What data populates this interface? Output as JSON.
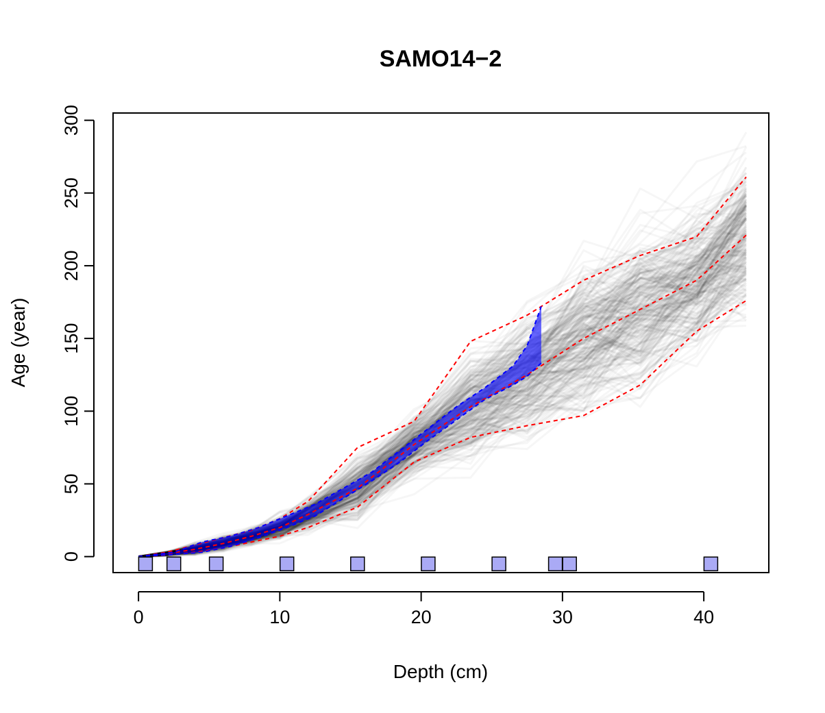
{
  "chart_data": {
    "type": "line",
    "title": "SAMO14−2",
    "xlabel": "Depth (cm)",
    "ylabel": "Age (year)",
    "xlim": [
      -1.8,
      44.6
    ],
    "ylim": [
      -11,
      305
    ],
    "x_ticks": [
      "0",
      "10",
      "20",
      "30",
      "40"
    ],
    "y_ticks": [
      "0",
      "50",
      "100",
      "150",
      "200",
      "250",
      "300"
    ],
    "grid": false,
    "legend": "none",
    "series": [
      {
        "role": "envelope-upper",
        "color": "#ff0000",
        "style": "dashed",
        "x": [
          0,
          2,
          4,
          6,
          8,
          10,
          12,
          15.5,
          19.5,
          23.5,
          27.5,
          31.5,
          35.5,
          39.5,
          43
        ],
        "y": [
          0,
          3,
          8,
          13,
          18,
          26,
          38,
          75,
          93,
          148,
          166,
          190,
          207,
          220,
          261
        ]
      },
      {
        "role": "median",
        "color": "#ff0000",
        "style": "dashed",
        "x": [
          0,
          2,
          4,
          6,
          8,
          10,
          12,
          15.5,
          19.5,
          23.5,
          27.5,
          31.5,
          35.5,
          39.5,
          43
        ],
        "y": [
          0,
          2,
          5,
          9,
          14,
          20,
          29,
          47,
          77,
          103,
          125,
          150,
          170,
          190,
          221
        ]
      },
      {
        "role": "envelope-lower",
        "color": "#ff0000",
        "style": "dashed",
        "x": [
          0,
          2,
          4,
          6,
          8,
          10,
          12,
          15.5,
          19.5,
          23.5,
          27.5,
          31.5,
          35.5,
          39.5,
          43
        ],
        "y": [
          0,
          1,
          3,
          6,
          10,
          14,
          20,
          34,
          65,
          82,
          90,
          97,
          118,
          155,
          176
        ]
      },
      {
        "role": "band-upper",
        "color": "#0000ff",
        "style": "dashed",
        "x": [
          0,
          2.5,
          4.5,
          6.5,
          8.5,
          10.5,
          12.5,
          14.5,
          16.5,
          18.5,
          20.5,
          22.5,
          24.5,
          26.5,
          27.5,
          28.5
        ],
        "y": [
          0,
          3,
          10,
          14,
          20,
          28,
          36,
          47,
          58,
          73,
          88,
          103,
          116,
          131,
          145,
          172
        ]
      },
      {
        "role": "band-lower",
        "color": "#0000ff",
        "style": "dashed",
        "x": [
          0,
          2.5,
          4.5,
          6.5,
          8.5,
          10.5,
          12.5,
          14.5,
          16.5,
          18.5,
          20.5,
          22.5,
          24.5,
          26.5,
          27.5,
          28.5
        ],
        "y": [
          0,
          1.5,
          3,
          7,
          13,
          20,
          28,
          40,
          52,
          65,
          80,
          94,
          108,
          118,
          124,
          133
        ]
      }
    ],
    "dated_samples": {
      "marker": "square",
      "fill": "#aaaaf5",
      "y": -5,
      "x": [
        0.5,
        2.5,
        5.5,
        10.5,
        15.5,
        20.5,
        25.5,
        29.5,
        30.5,
        40.5
      ]
    },
    "sample_cloud": {
      "color": "#000000",
      "description_free": true,
      "age_x": [
        0,
        2,
        4,
        6,
        8,
        10,
        12,
        15.5,
        19.5,
        23.5,
        27.5,
        31.5,
        35.5,
        39.5,
        43
      ],
      "age_mid": [
        0,
        2,
        5,
        9,
        14,
        20,
        29,
        47,
        77,
        103,
        125,
        150,
        170,
        190,
        221
      ],
      "age_spread": [
        0,
        1,
        2.5,
        3.5,
        4,
        5,
        7,
        14,
        14,
        24,
        30,
        36,
        40,
        32,
        40
      ]
    }
  }
}
